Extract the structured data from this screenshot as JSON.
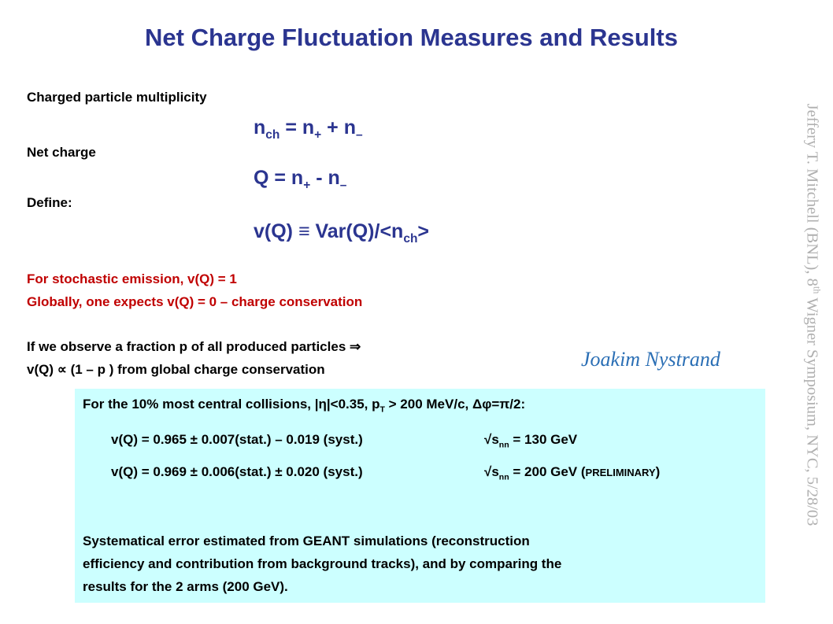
{
  "title": "Net Charge Fluctuation Measures and Results",
  "definitions": {
    "multiplicity_label": "Charged particle multiplicity",
    "multiplicity_eq_n": "n",
    "multiplicity_eq_ch": "ch",
    "multiplicity_eq_rest1": " = n",
    "multiplicity_eq_plus": "+",
    "multiplicity_eq_rest2": " + n",
    "multiplicity_eq_minus": "–",
    "netcharge_label": "Net charge",
    "netcharge_eq_1": "Q = n",
    "netcharge_eq_plus": "+",
    "netcharge_eq_2": " - n",
    "netcharge_eq_minus": "–",
    "define_label": "Define:",
    "define_eq_1": "v(Q)  ≡ Var(Q)/<n",
    "define_eq_ch": "ch",
    "define_eq_2": ">"
  },
  "notes": {
    "stochastic": "For stochastic emission, v(Q) = 1",
    "global": "Globally, one expects v(Q) = 0  –  charge conservation",
    "fraction_1": "If we observe a fraction p of all produced particles  ⇒",
    "fraction_2": "v(Q)  ∝ (1 – p )  from global charge conservation"
  },
  "author": "Joakim Nystrand",
  "sidebar": {
    "text_1": "Jeffery T. Mitchell (BNL), 8",
    "text_sup": "th",
    "text_2": " Wigner Symposium, NYC, 5/28/03"
  },
  "results": {
    "header_1": "For the 10% most central collisions,  |η|<0.35, p",
    "header_sub": "T",
    "header_2": " > 200 MeV/c,  Δφ=π/2:",
    "r1_value": "v(Q) = 0.965 ± 0.007(stat.) – 0.019 (syst.)",
    "r1_energy_1": "√s",
    "r1_energy_sub": "nn",
    "r1_energy_2": " = 130 GeV",
    "r2_value": "v(Q) = 0.969 ± 0.006(stat.) ± 0.020 (syst.)",
    "r2_energy_1": "√s",
    "r2_energy_sub": "nn",
    "r2_energy_2": " = 200 GeV (",
    "r2_prelim": "PRELIMINARY",
    "r2_close": ")",
    "syst_1": "Systematical error estimated from GEANT simulations (reconstruction",
    "syst_2": "efficiency and contribution from background tracks), and by comparing the",
    "syst_3": "results for the 2 arms (200 GeV)."
  },
  "colors": {
    "title": "#2b3590",
    "red": "#c00000",
    "author": "#2b6fb5",
    "box": "#ccffff",
    "sidebar": "#b0b0b0"
  }
}
